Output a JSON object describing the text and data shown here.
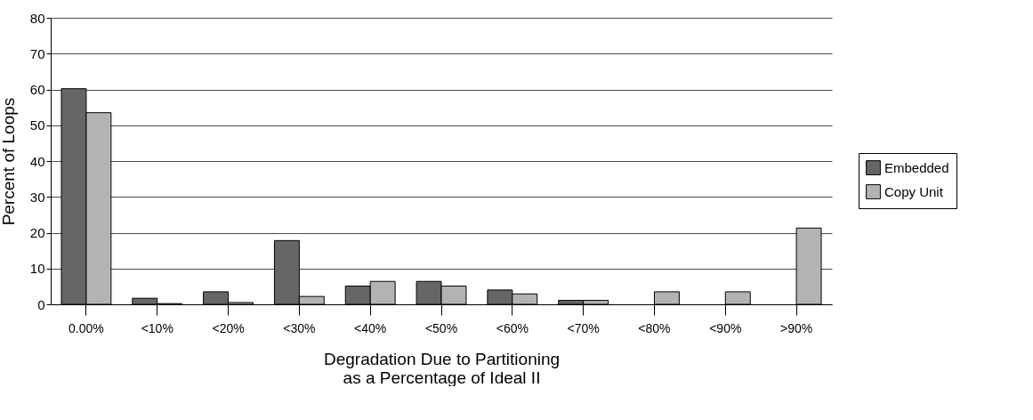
{
  "chart_data": {
    "type": "bar",
    "xlabel": "Degradation Due to Partitioning\nas a Percentage of Ideal II",
    "ylabel": "Percent of Loops",
    "categories": [
      "0.00%",
      "<10%",
      "<20%",
      "<30%",
      "<40%",
      "<50%",
      "<60%",
      "<70%",
      "<80%",
      "<90%",
      ">90%"
    ],
    "series": [
      {
        "name": "Embedded",
        "color": "#666666",
        "values": [
          60.2,
          1.7,
          3.5,
          17.8,
          5.1,
          6.4,
          4.0,
          1.1,
          0,
          0,
          0
        ]
      },
      {
        "name": "Copy Unit",
        "color": "#b3b3b3",
        "values": [
          53.5,
          0.2,
          0.5,
          2.2,
          6.4,
          5.1,
          2.9,
          1.1,
          3.5,
          3.5,
          21.3
        ]
      }
    ],
    "ylim": [
      0,
      80
    ],
    "yticks": [
      0,
      10,
      20,
      30,
      40,
      50,
      60,
      70,
      80
    ],
    "grid": "y",
    "legend": "right"
  }
}
